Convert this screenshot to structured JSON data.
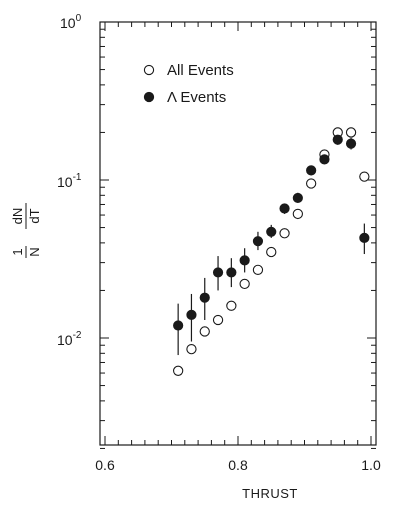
{
  "chart_data": {
    "type": "scatter",
    "xlabel": "THRUST",
    "ylabel": {
      "numerator_left": "1",
      "numerator_right": "dN",
      "denominator_left": "N",
      "denominator_right": "dT"
    },
    "yscale": "log",
    "xlim": [
      0.6,
      1.01
    ],
    "ylim": [
      0.002,
      1.0
    ],
    "x_ticks": [
      "0.6",
      "0.8",
      "1.0"
    ],
    "x_tick_values": [
      0.6,
      0.8,
      1.0
    ],
    "y_ticks": [
      {
        "base": "10",
        "exp": "0",
        "value": 1.0
      },
      {
        "base": "10",
        "exp": "-1",
        "value": 0.1
      },
      {
        "base": "10",
        "exp": "-2",
        "value": 0.01
      }
    ],
    "legend": {
      "placement": "top-left"
    },
    "series": [
      {
        "name": "All Events",
        "marker": "open-circle",
        "x": [
          0.71,
          0.73,
          0.75,
          0.77,
          0.79,
          0.81,
          0.83,
          0.85,
          0.87,
          0.89,
          0.91,
          0.93,
          0.95,
          0.97,
          0.99
        ],
        "y": [
          0.0062,
          0.0085,
          0.011,
          0.013,
          0.016,
          0.022,
          0.027,
          0.035,
          0.046,
          0.061,
          0.095,
          0.145,
          0.2,
          0.2,
          0.105
        ]
      },
      {
        "name": "Λ Events",
        "marker": "filled-circle",
        "x": [
          0.71,
          0.73,
          0.75,
          0.77,
          0.79,
          0.81,
          0.83,
          0.85,
          0.87,
          0.89,
          0.91,
          0.93,
          0.95,
          0.97,
          0.99
        ],
        "y": [
          0.012,
          0.014,
          0.018,
          0.026,
          0.026,
          0.031,
          0.041,
          0.047,
          0.066,
          0.077,
          0.115,
          0.135,
          0.18,
          0.17,
          0.043
        ],
        "yerr_low": [
          0.0078,
          0.0095,
          0.013,
          0.02,
          0.021,
          0.026,
          0.036,
          0.043,
          0.061,
          0.072,
          0.107,
          0.127,
          0.167,
          0.156,
          0.034
        ],
        "yerr_high": [
          0.0165,
          0.019,
          0.024,
          0.033,
          0.032,
          0.037,
          0.047,
          0.052,
          0.071,
          0.083,
          0.123,
          0.144,
          0.194,
          0.185,
          0.053
        ]
      }
    ]
  }
}
